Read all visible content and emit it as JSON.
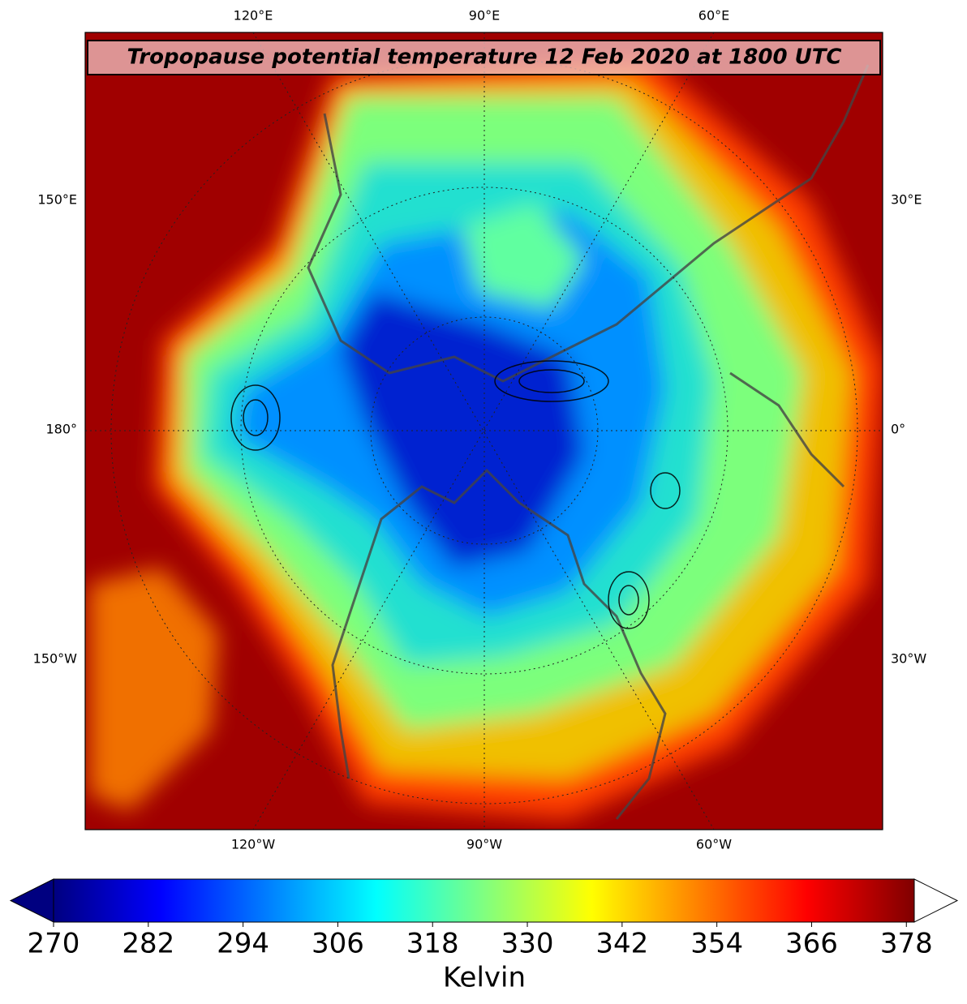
{
  "map": {
    "title": "Tropopause potential temperature 12 Feb 2020 at 1800 UTC",
    "labels": {
      "top": [
        "120°E",
        "90°E",
        "60°E"
      ],
      "bottom": [
        "120°W",
        "90°W",
        "60°W"
      ],
      "left": [
        "150°E",
        "180°",
        "150°W"
      ],
      "right": [
        "30°E",
        "0°",
        "30°W"
      ]
    }
  },
  "colorbar": {
    "colormap": "jet",
    "lim": [
      270,
      379
    ],
    "ticks": [
      270,
      282,
      294,
      306,
      318,
      330,
      342,
      354,
      366,
      378
    ],
    "label": "Kelvin",
    "extend": "both"
  }
}
